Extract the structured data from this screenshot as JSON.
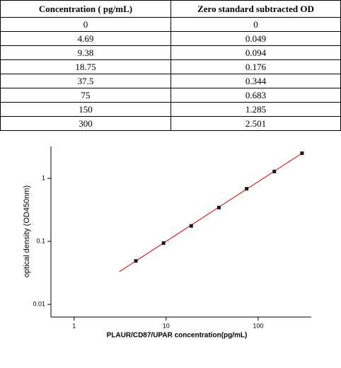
{
  "table": {
    "header": [
      "Concentration ( pg/mL)",
      "Zero standard subtracted OD"
    ],
    "rows": [
      [
        "0",
        "0"
      ],
      [
        "4.69",
        "0.049"
      ],
      [
        "9.38",
        "0.094"
      ],
      [
        "18.75",
        "0.176"
      ],
      [
        "37.5",
        "0.344"
      ],
      [
        "75",
        "0.683"
      ],
      [
        "150",
        "1.285"
      ],
      [
        "300",
        "2.501"
      ]
    ]
  },
  "chart_data": {
    "type": "scatter",
    "xscale": "log",
    "yscale": "log",
    "xlabel": "PLAUR/CD87/UPAR concentration(pg/mL)",
    "ylabel": "optical density (OD450nm)",
    "x": [
      4.69,
      9.38,
      18.75,
      37.5,
      75,
      150,
      300
    ],
    "series": [
      {
        "color": "#1a1a1a",
        "values": [
          0.049,
          0.094,
          0.176,
          0.344,
          0.683,
          1.285,
          2.501
        ]
      }
    ],
    "fit": {
      "color": "#e00000",
      "x": [
        3.1,
        300
      ],
      "values": [
        0.033,
        2.5
      ]
    },
    "xlim": [
      0.56,
      378
    ],
    "ylim": [
      0.0063,
      3.2
    ],
    "xticks": [
      1,
      10,
      100
    ],
    "yticks": [
      0.01,
      0.1,
      1
    ]
  }
}
